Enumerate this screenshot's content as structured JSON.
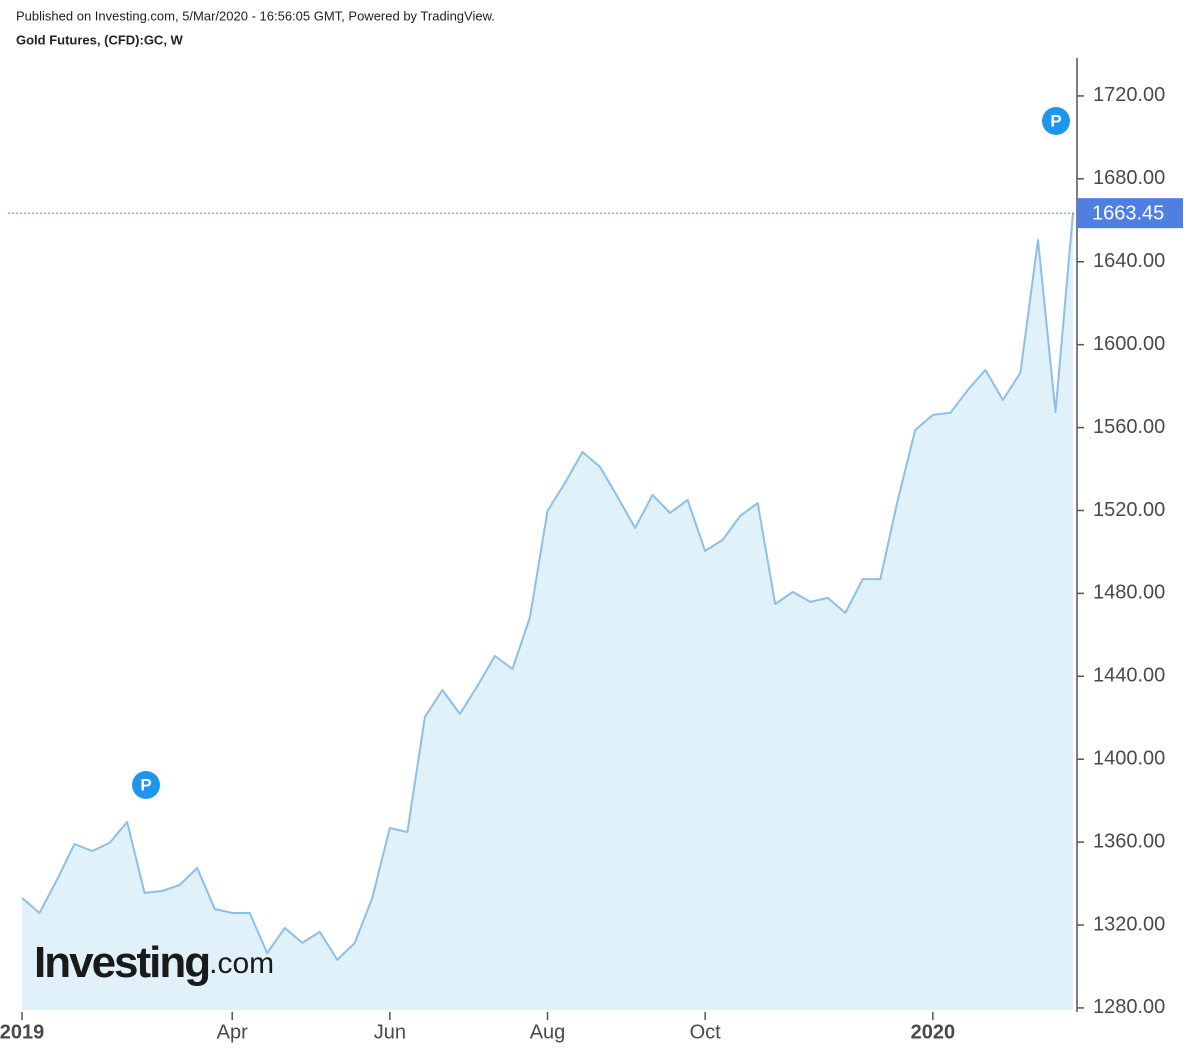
{
  "header": {
    "published": "Published on Investing.com, 5/Mar/2020 - 16:56:05 GMT, Powered by TradingView.",
    "instrument": "Gold Futures, (CFD):GC, W"
  },
  "chart_data": {
    "type": "area",
    "categories": [
      "2019",
      null,
      null,
      null,
      null,
      null,
      null,
      null,
      null,
      null,
      null,
      null,
      "Apr",
      null,
      null,
      null,
      null,
      null,
      null,
      null,
      null,
      "Jun",
      null,
      null,
      null,
      null,
      null,
      null,
      null,
      null,
      "Aug",
      null,
      null,
      null,
      null,
      null,
      null,
      null,
      null,
      "Oct",
      null,
      null,
      null,
      null,
      null,
      null,
      null,
      null,
      null,
      null,
      null,
      null,
      "2020",
      null,
      null,
      null,
      null,
      null,
      null,
      null,
      null
    ],
    "values": [
      1333.1,
      1325.8,
      1341.8,
      1359.1,
      1355.7,
      1359.6,
      1369.7,
      1335.5,
      1336.4,
      1339.3,
      1347.5,
      1327.8,
      1325.8,
      1325.8,
      1306.5,
      1318.6,
      1311.4,
      1316.7,
      1303.2,
      1311.4,
      1333.1,
      1366.8,
      1364.9,
      1420.4,
      1433.4,
      1421.8,
      1435.3,
      1449.8,
      1443.5,
      1468.6,
      1519.8,
      1533.3,
      1548.2,
      1541.0,
      1526.5,
      1511.6,
      1527.5,
      1518.8,
      1525.1,
      1500.5,
      1505.8,
      1517.4,
      1523.6,
      1474.9,
      1480.7,
      1475.9,
      1477.8,
      1470.6,
      1486.9,
      1486.9,
      1525.1,
      1558.9,
      1566.1,
      1567.1,
      1578.2,
      1587.8,
      1573.3,
      1586.4,
      1650.5,
      1567.5,
      1663.45
    ],
    "color": "#8cbfea",
    "fill_color": "#e1f1fa",
    "price_label_color": "#4f80e1",
    "ylim": [
      1279,
      1738.3
    ],
    "yticks": [
      {
        "value": 1280,
        "label": "1280.00"
      },
      {
        "value": 1320,
        "label": "1320.00"
      },
      {
        "value": 1360,
        "label": "1360.00"
      },
      {
        "value": 1400,
        "label": "1400.00"
      },
      {
        "value": 1440,
        "label": "1440.00"
      },
      {
        "value": 1480,
        "label": "1480.00"
      },
      {
        "value": 1520,
        "label": "1520.00"
      },
      {
        "value": 1560,
        "label": "1560.00"
      },
      {
        "value": 1600,
        "label": "1600.00"
      },
      {
        "value": 1640,
        "label": "1640.00"
      },
      {
        "value": 1680,
        "label": "1680.00"
      },
      {
        "value": 1720,
        "label": "1720.00"
      }
    ],
    "annotations": [
      "P",
      "P"
    ],
    "watermark": [
      "Investing",
      ".com"
    ]
  }
}
